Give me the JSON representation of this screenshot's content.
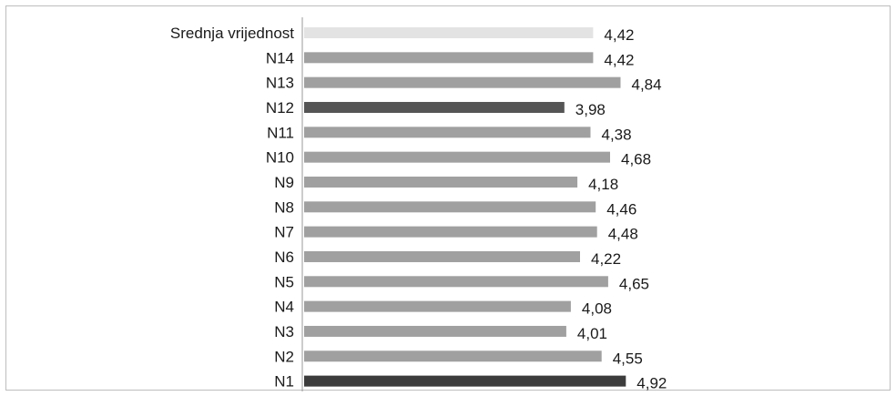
{
  "chart_data": {
    "type": "bar",
    "orientation": "horizontal",
    "categories": [
      "Srednja vrijednost",
      "N14",
      "N13",
      "N12",
      "N11",
      "N10",
      "N9",
      "N8",
      "N7",
      "N6",
      "N5",
      "N4",
      "N3",
      "N2",
      "N1"
    ],
    "values": [
      4.42,
      4.42,
      4.84,
      3.98,
      4.38,
      4.68,
      4.18,
      4.46,
      4.48,
      4.22,
      4.65,
      4.08,
      4.01,
      4.55,
      4.92
    ],
    "value_labels": [
      "4,42",
      "4,42",
      "4,84",
      "3,98",
      "4,38",
      "4,68",
      "4,18",
      "4,46",
      "4,48",
      "4,22",
      "4,65",
      "4,08",
      "4,01",
      "4,55",
      "4,92"
    ],
    "bar_colors": [
      "#e3e3e3",
      "#a0a0a0",
      "#a0a0a0",
      "#555555",
      "#a0a0a0",
      "#a0a0a0",
      "#a0a0a0",
      "#a0a0a0",
      "#a0a0a0",
      "#a0a0a0",
      "#a0a0a0",
      "#a0a0a0",
      "#a0a0a0",
      "#a0a0a0",
      "#3c3c3c"
    ],
    "xlim": [
      0,
      5
    ],
    "grid": false,
    "legend": "none",
    "title": "",
    "xlabel": "",
    "ylabel": ""
  }
}
